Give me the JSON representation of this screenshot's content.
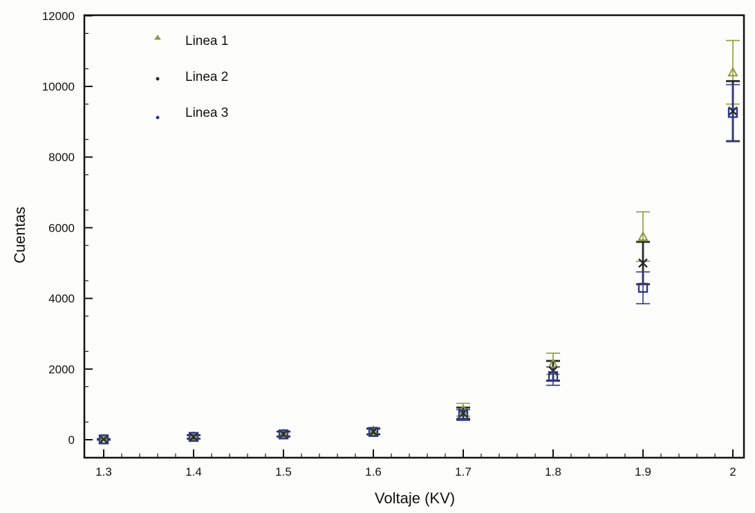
{
  "chart_data": {
    "type": "scatter",
    "title": "",
    "xlabel": "Voltaje (KV)",
    "ylabel": "Cuentas",
    "xlim": [
      1.28,
      2.03
    ],
    "ylim": [
      -500,
      12000
    ],
    "xticks": [
      1.3,
      1.4,
      1.5,
      1.6,
      1.7,
      1.8,
      1.9,
      2.0
    ],
    "xtick_labels": [
      "1.3",
      "1.4",
      "1.5",
      "1.6",
      "1.7",
      "1.8",
      "1.9",
      "2"
    ],
    "yticks": [
      0,
      2000,
      4000,
      6000,
      8000,
      10000,
      12000
    ],
    "ytick_labels": [
      "0",
      "2000",
      "4000",
      "6000",
      "8000",
      "10000",
      "12000"
    ],
    "grid": false,
    "legend_position": "top-left",
    "error_bars": true,
    "series": [
      {
        "name": "Linea 1",
        "color": "#8f9a3a",
        "marker": "triangle",
        "x": [
          1.3,
          1.4,
          1.5,
          1.6,
          1.7,
          1.8,
          1.9,
          2.0
        ],
        "y": [
          10,
          90,
          170,
          250,
          850,
          2150,
          5750,
          10400
        ],
        "err": [
          10,
          50,
          70,
          90,
          180,
          300,
          700,
          900
        ]
      },
      {
        "name": "Linea 2",
        "color": "#2a2a2a",
        "marker": "cross",
        "x": [
          1.3,
          1.4,
          1.5,
          1.6,
          1.7,
          1.8,
          1.9,
          2.0
        ],
        "y": [
          10,
          80,
          160,
          230,
          750,
          1950,
          5000,
          9300
        ],
        "err": [
          10,
          50,
          70,
          80,
          160,
          280,
          600,
          850
        ]
      },
      {
        "name": "Linea 3",
        "color": "#2c3a8c",
        "marker": "square",
        "x": [
          1.3,
          1.4,
          1.5,
          1.6,
          1.7,
          1.8,
          1.9,
          2.0
        ],
        "y": [
          10,
          80,
          150,
          220,
          700,
          1800,
          4300,
          9250
        ],
        "err": [
          10,
          50,
          70,
          80,
          150,
          260,
          450,
          800
        ]
      }
    ]
  }
}
